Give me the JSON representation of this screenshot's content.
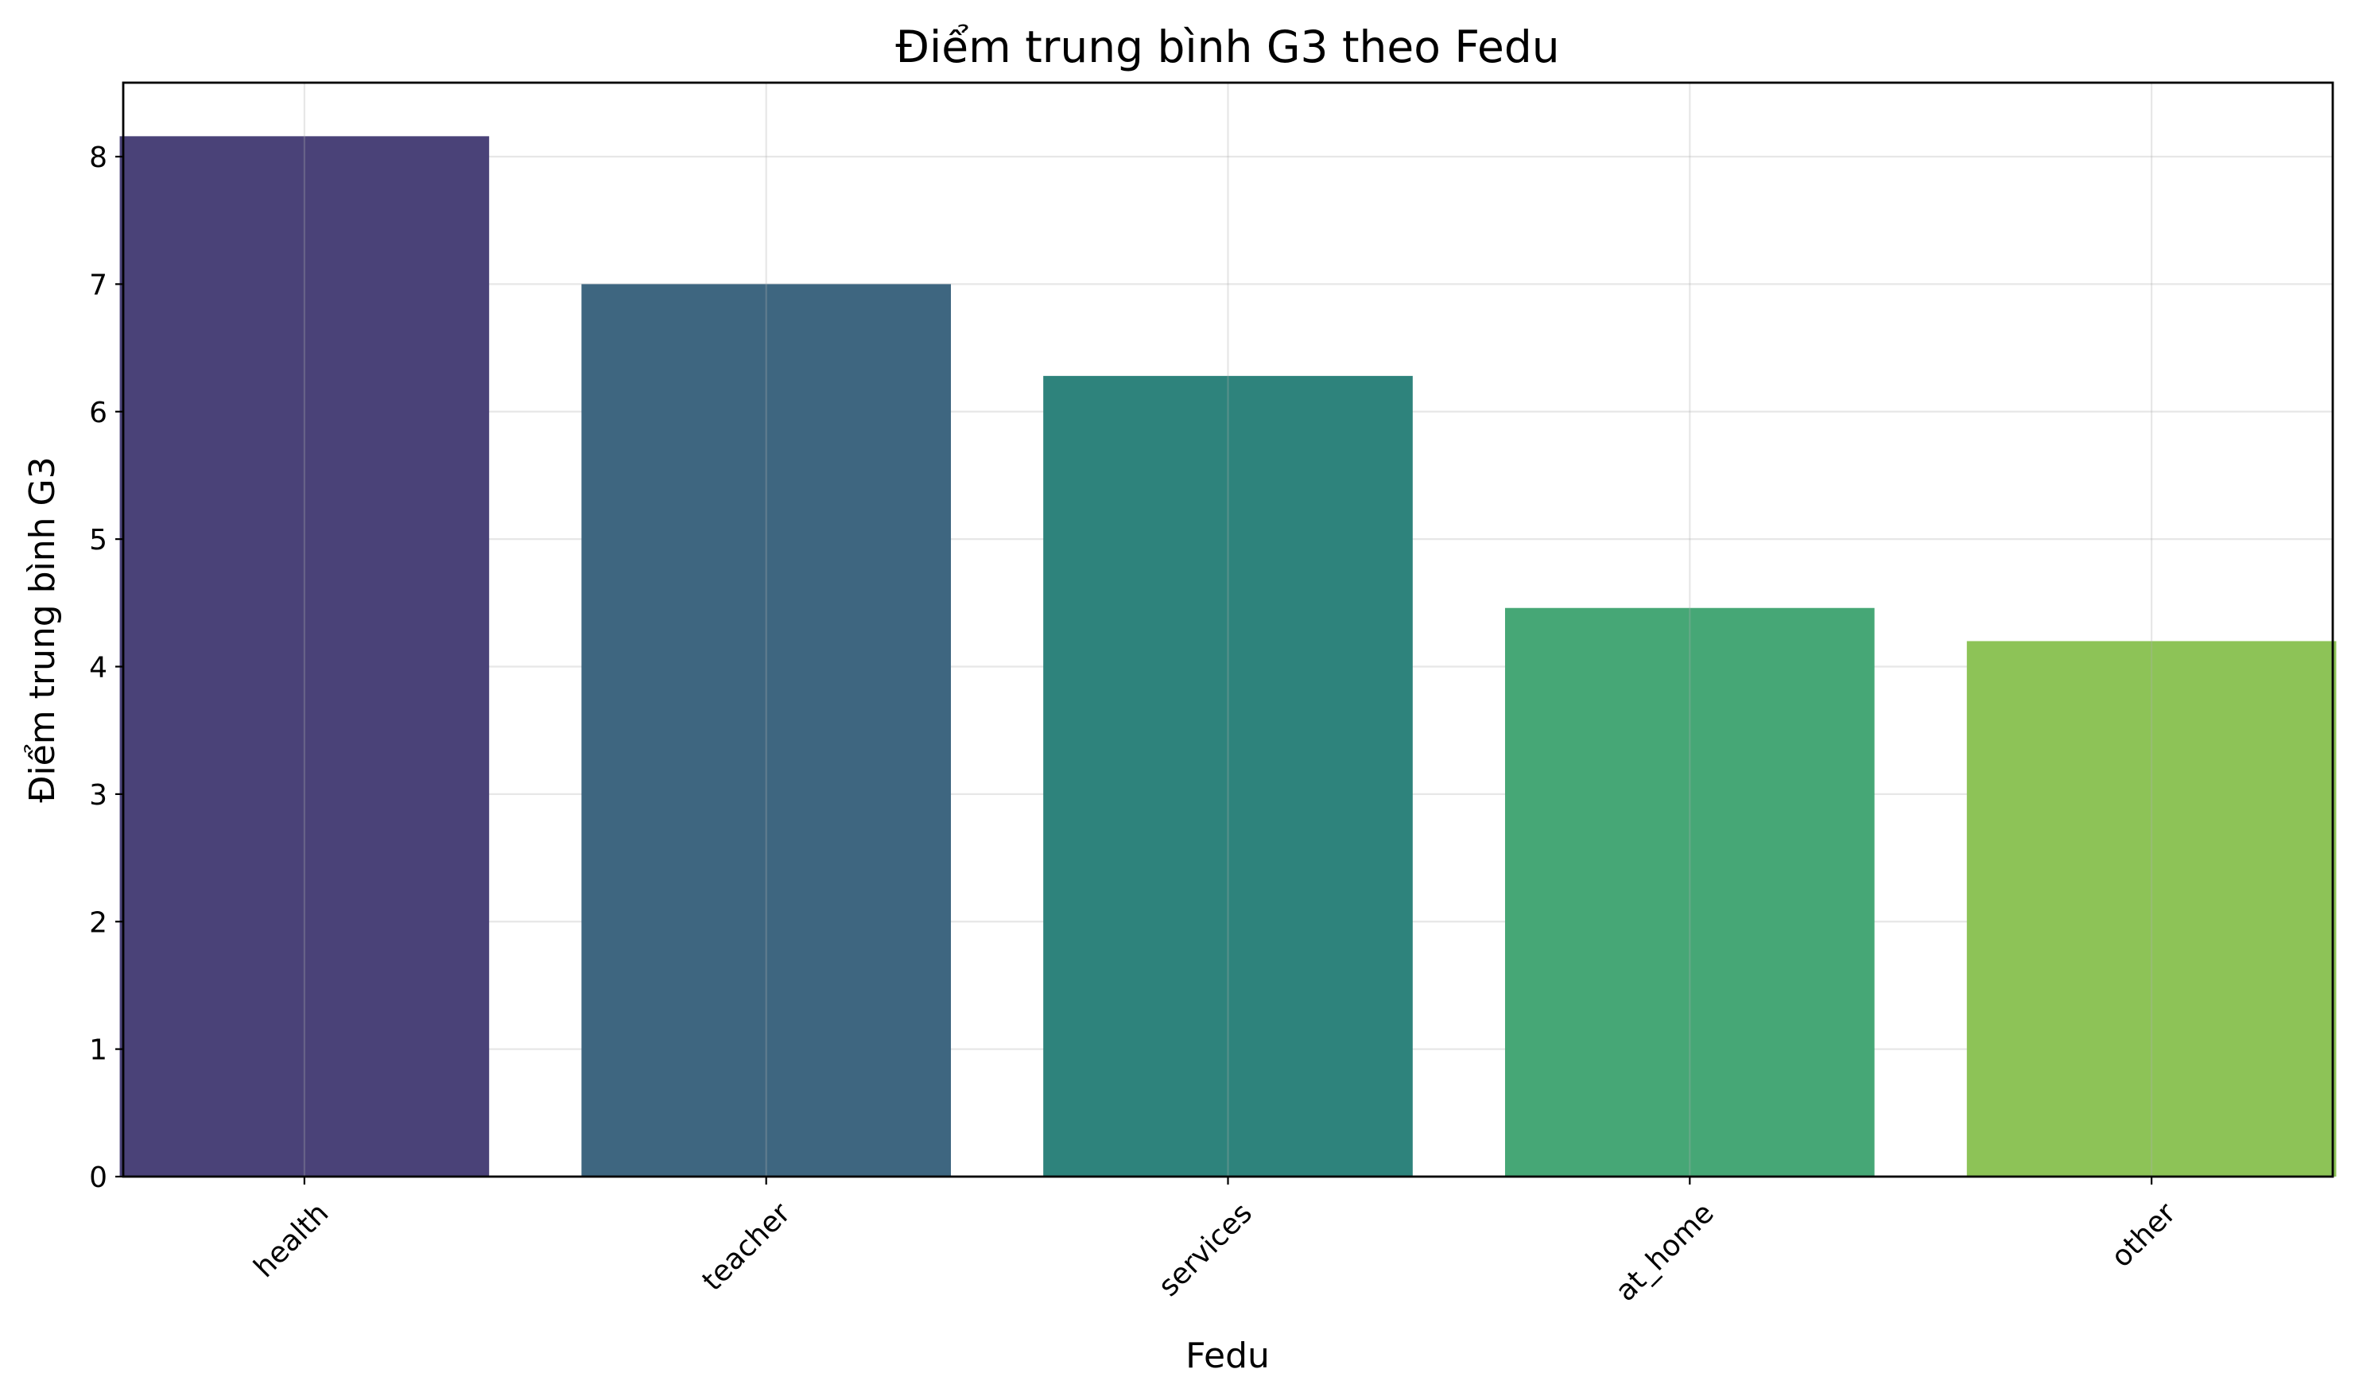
{
  "chart_data": {
    "type": "bar",
    "title": "Điểm trung bình G3 theo Fedu",
    "xlabel": "Fedu",
    "ylabel": "Điểm trung bình G3",
    "categories": [
      "health",
      "teacher",
      "services",
      "at_home",
      "other"
    ],
    "values": [
      8.16,
      7.0,
      6.28,
      4.46,
      4.2
    ],
    "colors": [
      "#4a4278",
      "#3e6680",
      "#2e837c",
      "#46a776",
      "#8dc357"
    ],
    "ylim": [
      0,
      8.58
    ],
    "yticks": [
      0,
      1,
      2,
      3,
      4,
      5,
      6,
      7,
      8
    ],
    "grid": true,
    "legend": "none"
  }
}
